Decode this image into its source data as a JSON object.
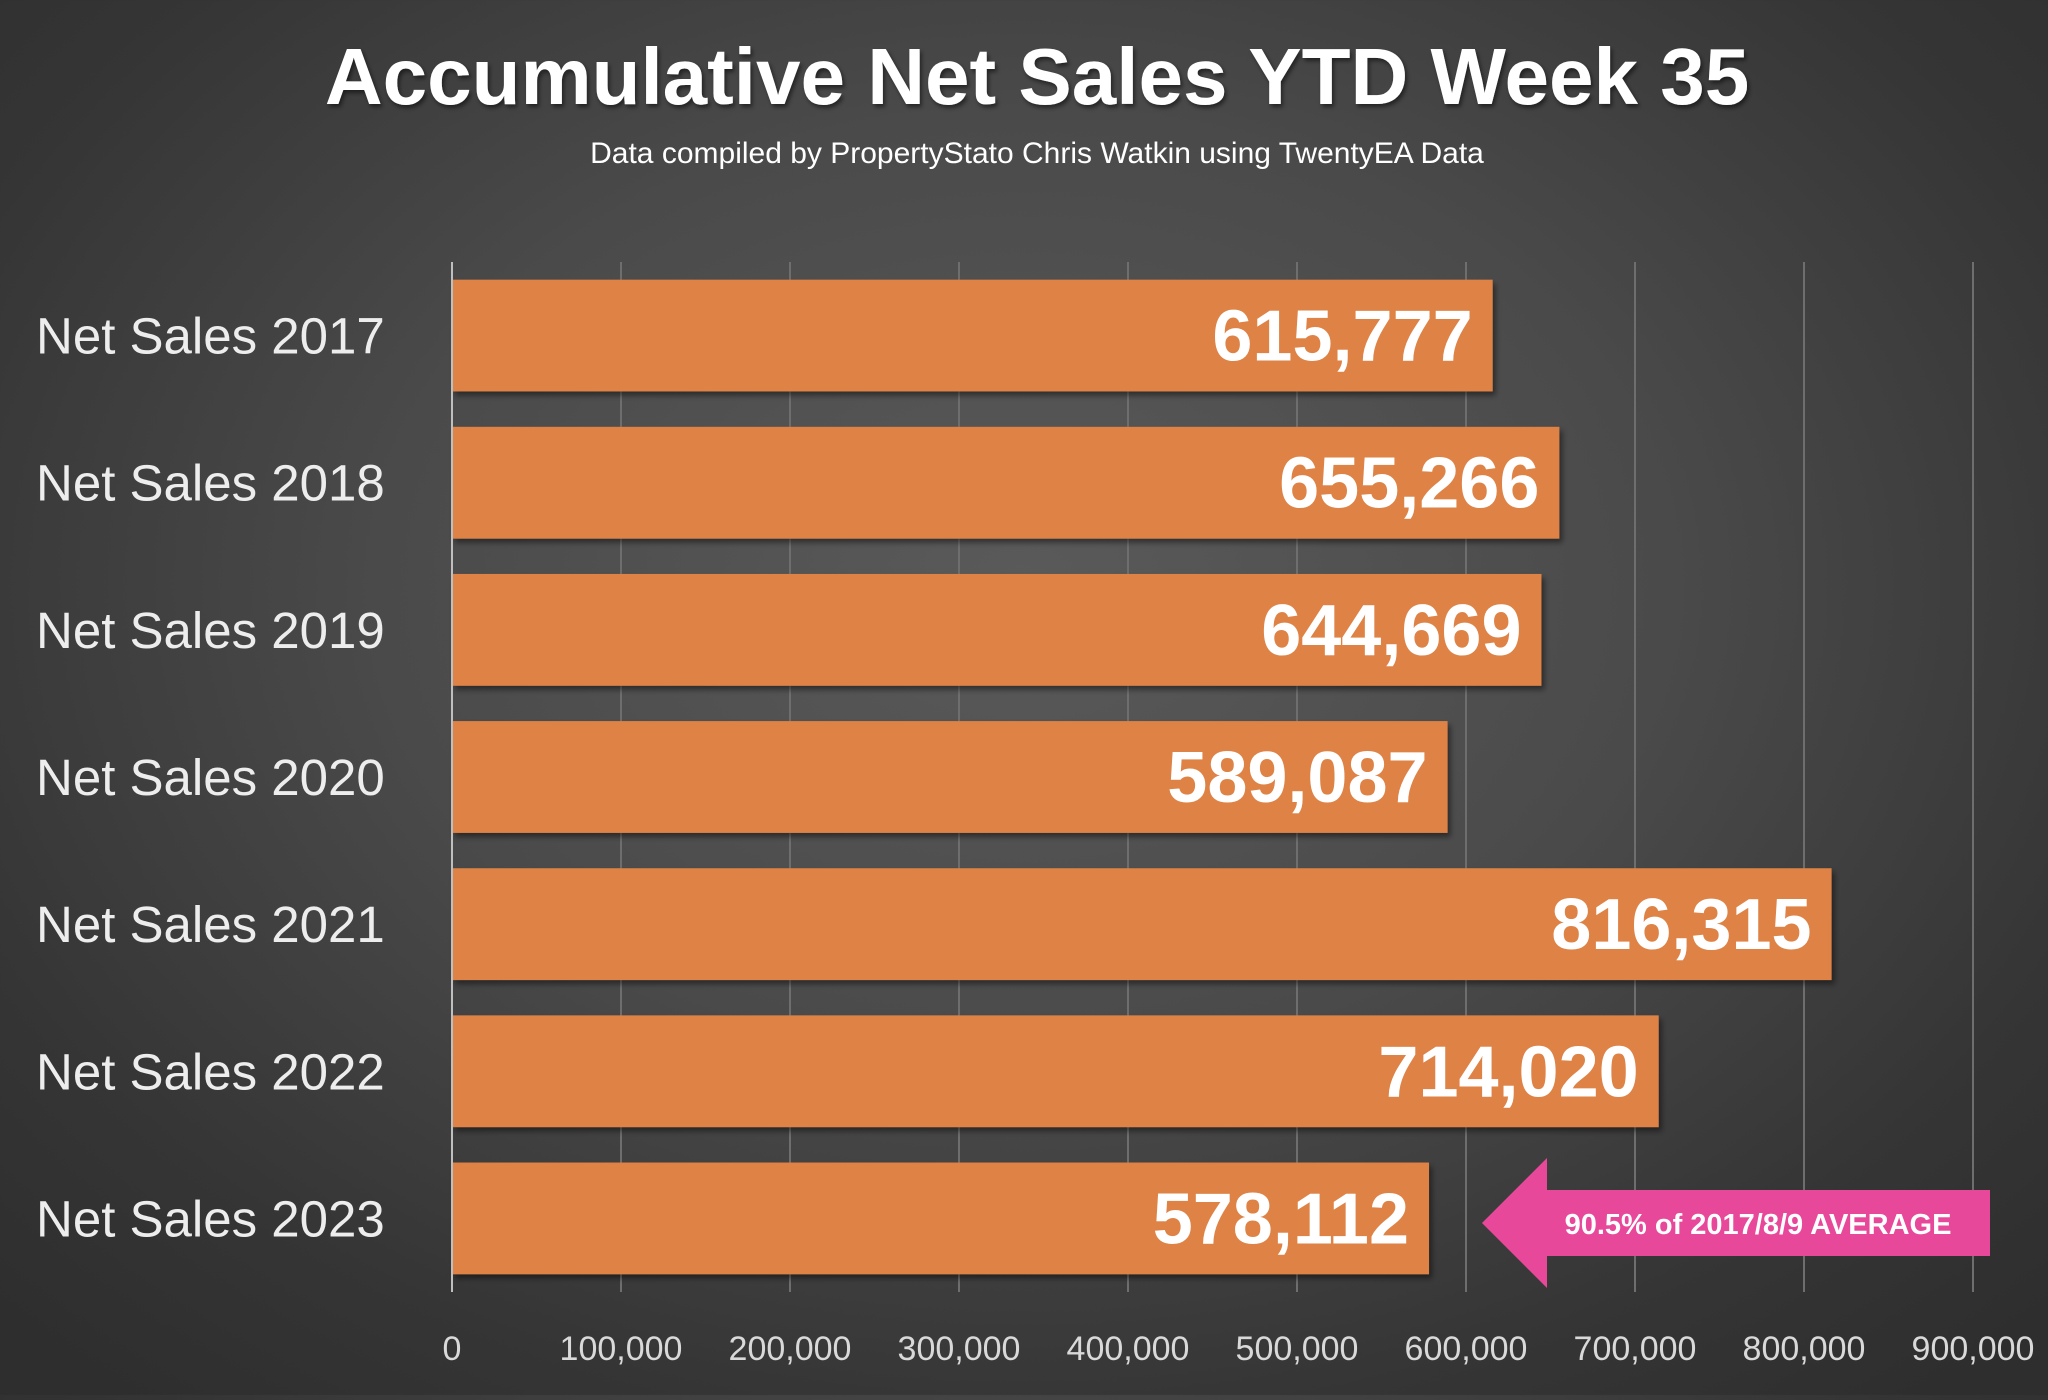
{
  "chart_data": {
    "type": "bar",
    "orientation": "horizontal",
    "title": "Accumulative Net Sales YTD Week 35",
    "subtitle": "Data compiled by PropertyStato Chris Watkin using TwentyEA Data",
    "categories": [
      "Net Sales 2017",
      "Net Sales 2018",
      "Net Sales 2019",
      "Net Sales 2020",
      "Net Sales 2021",
      "Net Sales 2022",
      "Net Sales 2023"
    ],
    "values": [
      615777,
      655266,
      644669,
      589087,
      816315,
      714020,
      578112
    ],
    "data_labels": [
      "615,777",
      "655,266",
      "644,669",
      "589,087",
      "816,315",
      "714,020",
      "578,112"
    ],
    "xlim": [
      0,
      900000
    ],
    "x_ticks": [
      0,
      100000,
      200000,
      300000,
      400000,
      500000,
      600000,
      700000,
      800000,
      900000
    ],
    "x_tick_labels": [
      "0",
      "100,000",
      "200,000",
      "300,000",
      "400,000",
      "500,000",
      "600,000",
      "700,000",
      "800,000",
      "900,000"
    ],
    "gridlines": true,
    "bar_color": "#DE8245",
    "annotation": {
      "text": "90.5% of 2017/8/9 AVERAGE",
      "target_category": "Net Sales 2023",
      "color": "#E8489A",
      "shape": "left-arrow"
    }
  },
  "colors": {
    "background": "#444444",
    "text_light": "#FFFFFF",
    "category_text": "#EDEDED",
    "tick_text": "#D9D9D9",
    "gridline": "#6E6E6E",
    "axis_line": "#BFBFBF"
  }
}
